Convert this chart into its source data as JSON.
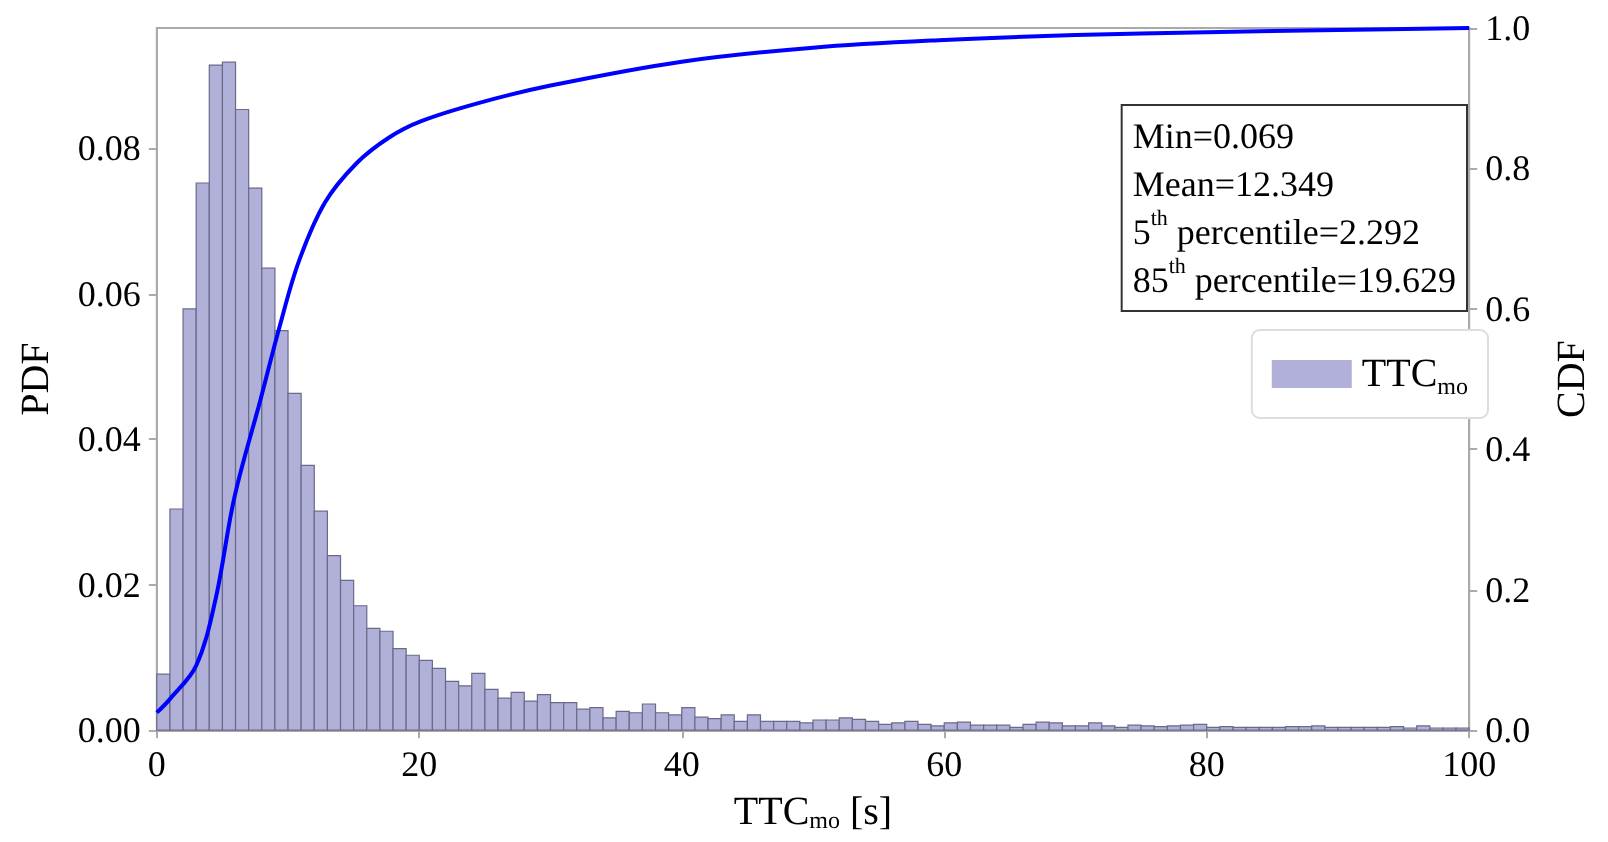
{
  "chart_data": {
    "type": "histogram",
    "xlabel": "TTC$_{mo}$ [s]",
    "ylabel": "PDF",
    "y2label": "CDF",
    "annotations": [
      "Min=0.069",
      "Mean=12.349",
      "5$^{th}$ percentile=2.292",
      "85$^{th}$ percentile=19.629"
    ],
    "legend": "right",
    "xlim": [
      0,
      100
    ],
    "xticks": [
      0,
      20,
      40,
      60,
      80,
      100
    ],
    "ylim": [
      0,
      0.0965
    ],
    "yticks": [
      {
        "value": 0,
        "label": "0.00"
      },
      0.02,
      0.04,
      0.06,
      0.08
    ],
    "y2lim": [
      0,
      1
    ],
    "y2ticks": [
      {
        "value": 0,
        "label": "0.0"
      },
      0.2,
      0.4,
      0.6,
      0.8,
      {
        "value": 1,
        "label": "1.0"
      }
    ],
    "series": [
      {
        "name": "TTC$_{mo}$",
        "color": "#b0b0d8",
        "bins": [
          0,
          1,
          2,
          3,
          4,
          5,
          6,
          7,
          8,
          9,
          10,
          11,
          12,
          13,
          14,
          15,
          16,
          17,
          18,
          19,
          20,
          21,
          22,
          23,
          24,
          25,
          26,
          27,
          28,
          29,
          30,
          31,
          32,
          33,
          34,
          35,
          36,
          37,
          38,
          39,
          40,
          41,
          42,
          43,
          44,
          45,
          46,
          47,
          48,
          49,
          50,
          51,
          52,
          53,
          54,
          55,
          56,
          57,
          58,
          59,
          60,
          61,
          62,
          63,
          64,
          65,
          66,
          67,
          68,
          69,
          70,
          71,
          72,
          73,
          74,
          75,
          76,
          77,
          78,
          79,
          80,
          81,
          82,
          83,
          84,
          85,
          86,
          87,
          88,
          89,
          90,
          91,
          92,
          93,
          94,
          95,
          96,
          97,
          98,
          99,
          100
        ],
        "values": [
          0.0077,
          0.0304,
          0.0579,
          0.0752,
          0.0914,
          0.0918,
          0.0853,
          0.0745,
          0.0635,
          0.0549,
          0.0463,
          0.0364,
          0.0301,
          0.024,
          0.0206,
          0.0171,
          0.014,
          0.0136,
          0.0112,
          0.0103,
          0.0096,
          0.0085,
          0.0067,
          0.0061,
          0.0078,
          0.0056,
          0.0044,
          0.0052,
          0.004,
          0.0049,
          0.0038,
          0.0038,
          0.0029,
          0.0031,
          0.0017,
          0.0026,
          0.0024,
          0.0036,
          0.0024,
          0.0021,
          0.0031,
          0.0018,
          0.0016,
          0.0021,
          0.0012,
          0.0021,
          0.0012,
          0.0012,
          0.0012,
          0.001,
          0.0014,
          0.0014,
          0.0017,
          0.0015,
          0.0012,
          0.0008,
          0.001,
          0.0012,
          0.0008,
          0.0006,
          0.001,
          0.0011,
          0.0007,
          0.0007,
          0.0007,
          0.0004,
          0.0008,
          0.0011,
          0.001,
          0.0006,
          0.0006,
          0.001,
          0.0006,
          0.0004,
          0.0007,
          0.0006,
          0.0005,
          0.0006,
          0.0007,
          0.0008,
          0.0004,
          0.0005,
          0.0004,
          0.0004,
          0.0004,
          0.0004,
          0.0005,
          0.0005,
          0.0006,
          0.0004,
          0.0004,
          0.0004,
          0.0004,
          0.0004,
          0.0005,
          0.0003,
          0.0006,
          0.0003,
          0.0003,
          0.0003
        ]
      },
      {
        "type": "line",
        "axis": "y2",
        "color": "#0000ff",
        "x": [
          0,
          1.03,
          3.0,
          4.46,
          5.93,
          7.89,
          9.36,
          10.83,
          12.8,
          15.2,
          17.7,
          20.1,
          24.5,
          30,
          40,
          50,
          60,
          70,
          80,
          90,
          100
        ],
        "values": [
          0.025,
          0.045,
          0.092,
          0.185,
          0.333,
          0.47,
          0.575,
          0.668,
          0.751,
          0.807,
          0.844,
          0.867,
          0.893,
          0.918,
          0.952,
          0.972,
          0.983,
          0.99,
          0.994,
          0.997,
          1.0
        ]
      }
    ]
  }
}
